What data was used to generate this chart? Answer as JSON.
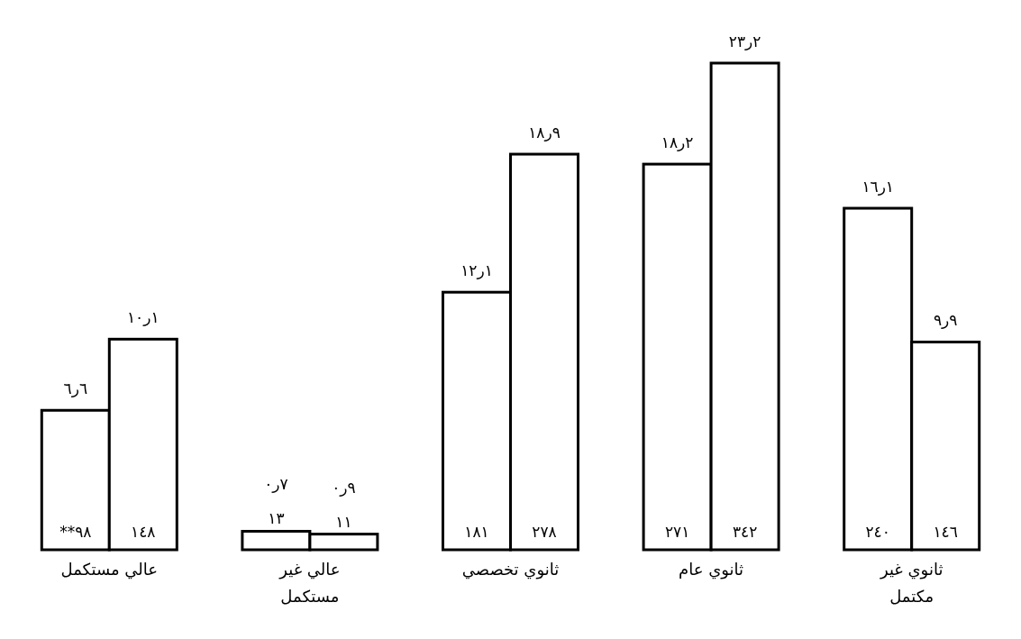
{
  "chart_data": {
    "type": "bar",
    "categories": [
      "عالي مستكمل",
      "عالي غير مستكمل",
      "ثانوي تخصصي",
      "ثانوي عام",
      "ثانوي غير مكتمل"
    ],
    "series": [
      {
        "color": "#ffffff",
        "values": [
          98,
          13,
          181,
          271,
          240
        ],
        "value_labels": [
          "**٩٨",
          "١٣",
          "١٨١",
          "٢٧١",
          "٢٤٠"
        ]
      },
      {
        "color": "#ffffff",
        "values": [
          148,
          11,
          278,
          342,
          146
        ],
        "value_labels": [
          "١٤٨",
          "١١",
          "٢٧٨",
          "٣٤٢",
          "١٤٦"
        ]
      }
    ],
    "annotations": [
      {
        "text": "٦ر٦",
        "x": "عالي مستكمل",
        "y": 98
      },
      {
        "text": "٠ر٧",
        "x": "عالي غير مستكمل",
        "y": 13
      },
      {
        "text": "١٢ر١",
        "x": "ثانوي تخصصي",
        "y": 181
      },
      {
        "text": "١٨ر٢",
        "x": "ثانوي عام",
        "y": 271
      },
      {
        "text": "١٦ر١",
        "x": "ثانوي غير مكتمل",
        "y": 240
      },
      {
        "text": "١٠ر١",
        "x": "عالي مستكمل",
        "y": 148
      },
      {
        "text": "٠ر٩",
        "x": "عالي غير مستكمل",
        "y": 11
      },
      {
        "text": "١٨ر٩",
        "x": "ثانوي تخصصي",
        "y": 278
      },
      {
        "text": "٢٣ر٢",
        "x": "ثانوي عام",
        "y": 342
      },
      {
        "text": "٩ر٩",
        "x": "ثانوي غير مكتمل",
        "y": 146
      }
    ],
    "grid": false
  }
}
